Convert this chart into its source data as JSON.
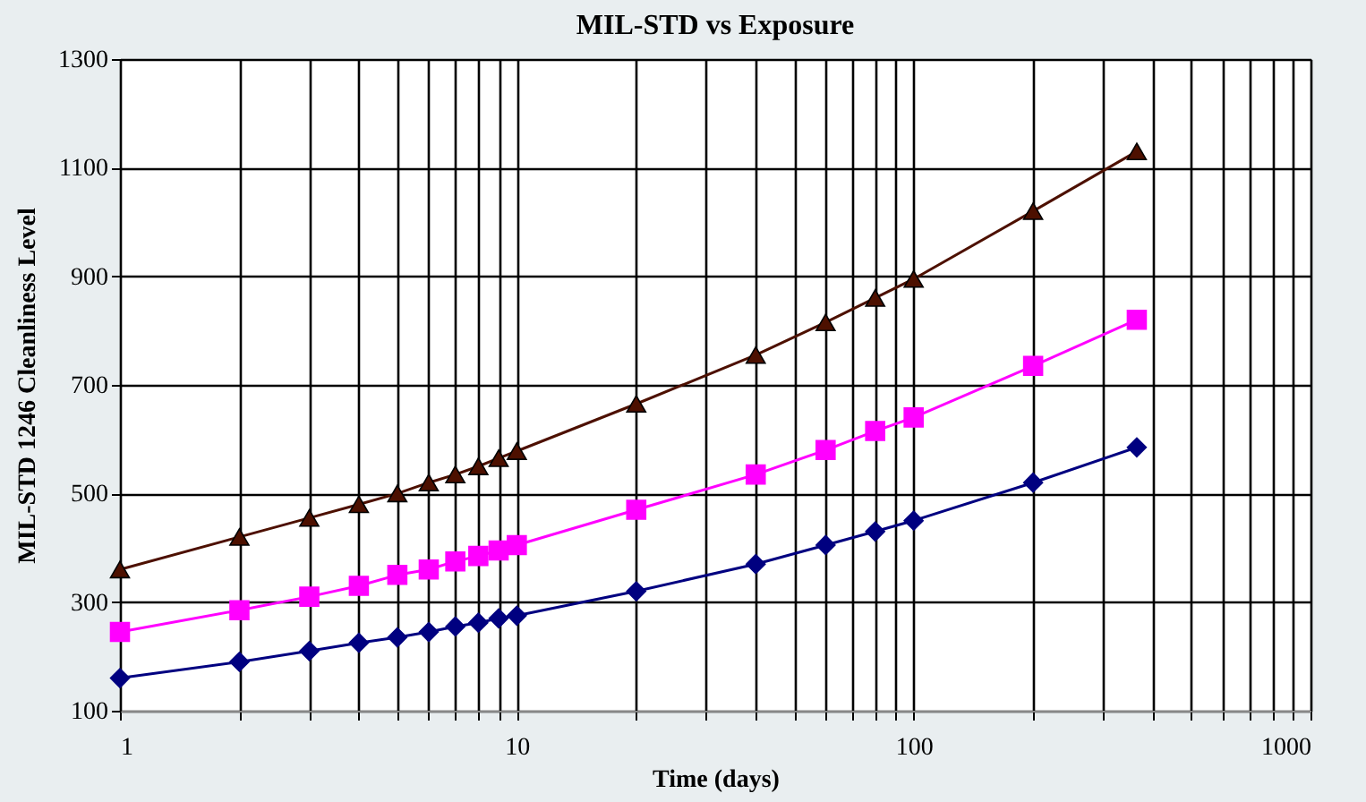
{
  "chart_data": {
    "type": "line",
    "title": "MIL-STD vs Exposure",
    "xlabel": "Time (days)",
    "ylabel": "MIL-STD 1246 Cleanliness Level",
    "x": [
      1,
      2,
      3,
      4,
      5,
      6,
      7,
      8,
      9,
      10,
      20,
      40,
      60,
      80,
      100,
      200,
      365
    ],
    "series": [
      {
        "color": "#000080",
        "marker": "diamond",
        "values": [
          160,
          190,
          210,
          225,
          235,
          245,
          255,
          262,
          270,
          275,
          320,
          370,
          405,
          430,
          450,
          520,
          585
        ]
      },
      {
        "color": "#ff00ff",
        "marker": "square",
        "values": [
          245,
          285,
          310,
          330,
          350,
          360,
          375,
          385,
          395,
          405,
          470,
          535,
          580,
          615,
          640,
          735,
          820
        ]
      },
      {
        "color": "#4d1000",
        "marker": "triangle",
        "values": [
          360,
          420,
          455,
          480,
          500,
          520,
          535,
          550,
          565,
          578,
          665,
          755,
          815,
          860,
          895,
          1020,
          1130
        ]
      }
    ],
    "log": "x",
    "xlim": [
      1,
      1000
    ],
    "xticks": [
      1,
      {
        "value": 2,
        "label": null
      },
      {
        "value": 3,
        "label": null
      },
      {
        "value": 4,
        "label": null
      },
      {
        "value": 5,
        "label": null
      },
      {
        "value": 6,
        "label": null
      },
      {
        "value": 7,
        "label": null
      },
      {
        "value": 8,
        "label": null
      },
      {
        "value": 9,
        "label": null
      },
      10,
      {
        "value": 20,
        "label": null
      },
      {
        "value": 30,
        "label": null
      },
      {
        "value": 40,
        "label": null
      },
      {
        "value": 50,
        "label": null
      },
      {
        "value": 60,
        "label": null
      },
      {
        "value": 70,
        "label": null
      },
      {
        "value": 80,
        "label": null
      },
      {
        "value": 90,
        "label": null
      },
      100,
      {
        "value": 200,
        "label": null
      },
      {
        "value": 300,
        "label": null
      },
      {
        "value": 400,
        "label": null
      },
      {
        "value": 500,
        "label": null
      },
      {
        "value": 600,
        "label": null
      },
      {
        "value": 700,
        "label": null
      },
      {
        "value": 800,
        "label": null
      },
      {
        "value": 900,
        "label": null
      },
      1000
    ],
    "ylim": [
      100,
      1300
    ],
    "yticks": [
      100,
      300,
      500,
      700,
      900,
      1100,
      1300
    ],
    "grid": true,
    "legend": false,
    "line_style": "solid"
  }
}
